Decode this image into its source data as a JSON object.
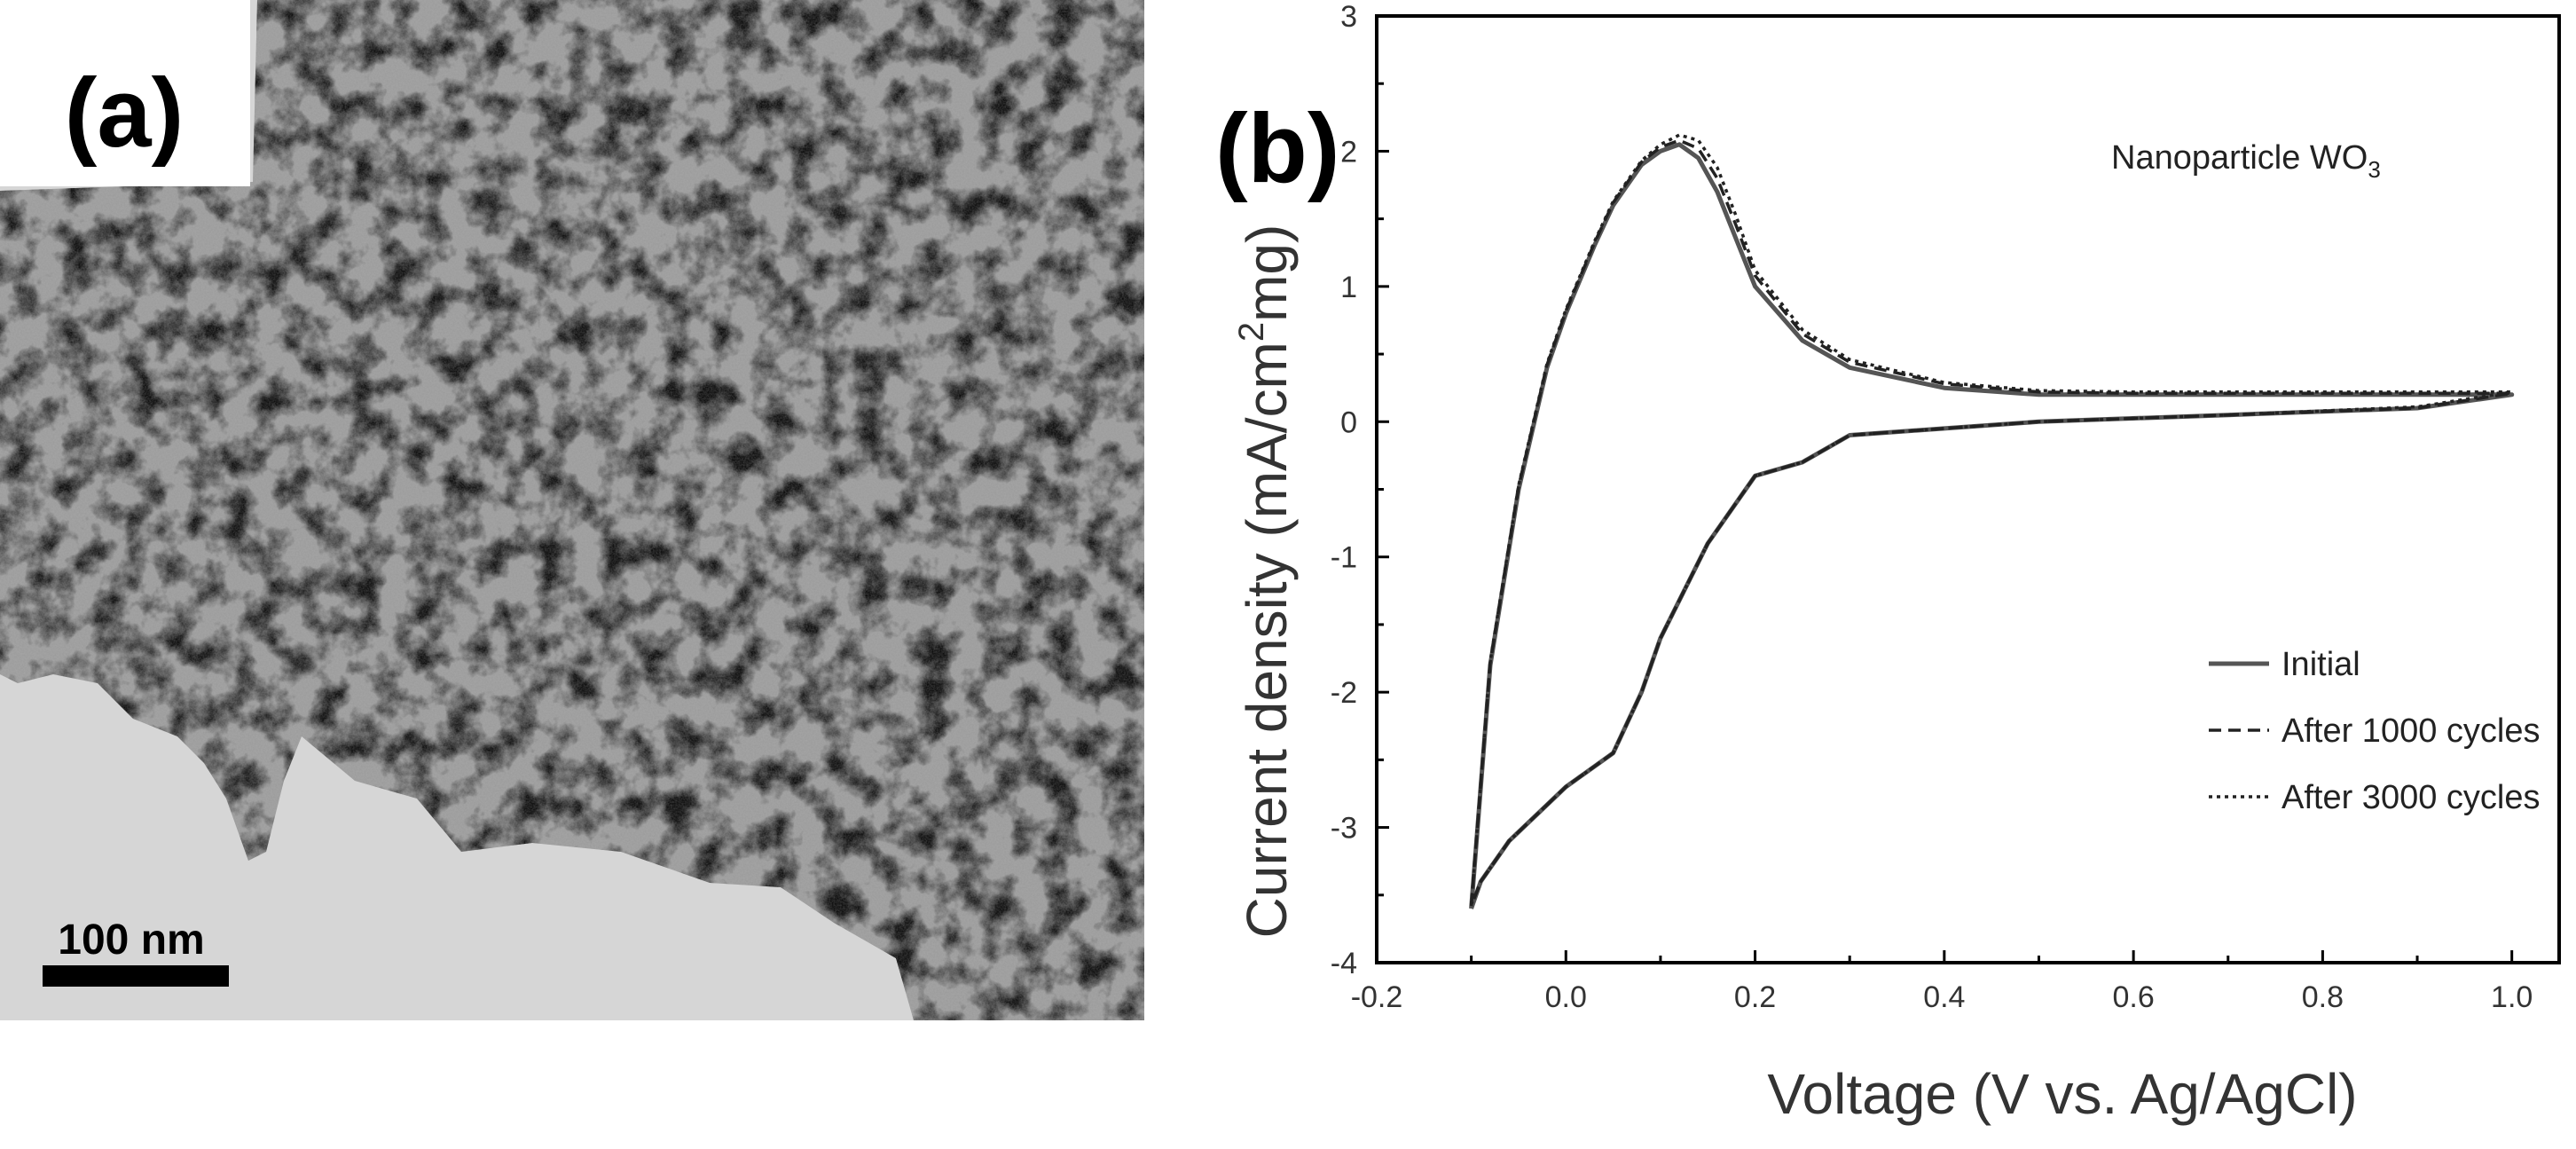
{
  "panel_a": {
    "label": "(a)",
    "scale_bar_label": "100 nm"
  },
  "chart_data": {
    "type": "line",
    "panel_label": "(b)",
    "title": "",
    "annotation": "Nanoparticle WO",
    "annotation_subscript": "3",
    "xlabel": "Voltage (V vs. Ag/AgCl)",
    "ylabel": "Current density (mA/cm",
    "ylabel_sup": "2",
    "ylabel_tail": "mg)",
    "xlim": [
      -0.2,
      1.05
    ],
    "ylim": [
      -4,
      3
    ],
    "xticks": [
      -0.2,
      0.0,
      0.2,
      0.4,
      0.6,
      0.8,
      1.0
    ],
    "xtick_labels": [
      "-0.2",
      "0.0",
      "0.2",
      "0.4",
      "0.6",
      "0.8",
      "1.0"
    ],
    "yticks": [
      -4,
      -3,
      -2,
      -1,
      0,
      1,
      2,
      3
    ],
    "ytick_labels": [
      "-4",
      "-3",
      "-2",
      "-1",
      "0",
      "1",
      "2",
      "3"
    ],
    "grid": false,
    "legend_position": "lower-right",
    "series": [
      {
        "name": "Initial",
        "style": "solid",
        "x": [
          -0.1,
          -0.08,
          -0.05,
          -0.02,
          0.0,
          0.03,
          0.05,
          0.08,
          0.1,
          0.12,
          0.14,
          0.16,
          0.18,
          0.2,
          0.25,
          0.3,
          0.4,
          0.5,
          0.6,
          0.8,
          1.0,
          0.9,
          0.7,
          0.5,
          0.4,
          0.3,
          0.25,
          0.2,
          0.15,
          0.1,
          0.08,
          0.05,
          0.02,
          0.0,
          -0.03,
          -0.06,
          -0.09,
          -0.1
        ],
        "y": [
          -3.6,
          -1.8,
          -0.5,
          0.4,
          0.8,
          1.3,
          1.6,
          1.9,
          2.0,
          2.05,
          1.95,
          1.7,
          1.35,
          1.0,
          0.6,
          0.4,
          0.25,
          0.2,
          0.2,
          0.2,
          0.2,
          0.1,
          0.05,
          0.0,
          -0.05,
          -0.1,
          -0.3,
          -0.4,
          -0.9,
          -1.6,
          -2.0,
          -2.45,
          -2.6,
          -2.7,
          -2.9,
          -3.1,
          -3.4,
          -3.6
        ]
      },
      {
        "name": "After 1000 cycles",
        "style": "dashed",
        "x": [
          -0.1,
          -0.08,
          -0.05,
          -0.02,
          0.0,
          0.03,
          0.05,
          0.08,
          0.1,
          0.12,
          0.14,
          0.16,
          0.18,
          0.2,
          0.25,
          0.3,
          0.4,
          0.5,
          0.6,
          0.8,
          1.0,
          0.9,
          0.7,
          0.5,
          0.4,
          0.3,
          0.25,
          0.2,
          0.15,
          0.1,
          0.08,
          0.05,
          0.02,
          0.0,
          -0.03,
          -0.06,
          -0.09,
          -0.1
        ],
        "y": [
          -3.58,
          -1.78,
          -0.48,
          0.42,
          0.82,
          1.32,
          1.62,
          1.92,
          2.03,
          2.08,
          2.02,
          1.8,
          1.45,
          1.08,
          0.65,
          0.44,
          0.28,
          0.22,
          0.21,
          0.21,
          0.21,
          0.1,
          0.05,
          0.0,
          -0.05,
          -0.1,
          -0.3,
          -0.4,
          -0.9,
          -1.6,
          -2.0,
          -2.45,
          -2.6,
          -2.7,
          -2.9,
          -3.1,
          -3.4,
          -3.58
        ]
      },
      {
        "name": "After 3000 cycles",
        "style": "dotted",
        "x": [
          -0.1,
          -0.08,
          -0.05,
          -0.02,
          0.0,
          0.03,
          0.05,
          0.08,
          0.1,
          0.12,
          0.14,
          0.16,
          0.18,
          0.2,
          0.25,
          0.3,
          0.4,
          0.5,
          0.6,
          0.8,
          1.0,
          0.9,
          0.7,
          0.5,
          0.4,
          0.3,
          0.25,
          0.2,
          0.15,
          0.1,
          0.08,
          0.05,
          0.02,
          0.0,
          -0.03,
          -0.06,
          -0.09,
          -0.1
        ],
        "y": [
          -3.57,
          -1.77,
          -0.47,
          0.43,
          0.83,
          1.33,
          1.63,
          1.93,
          2.05,
          2.12,
          2.08,
          1.88,
          1.52,
          1.12,
          0.68,
          0.46,
          0.29,
          0.23,
          0.22,
          0.22,
          0.22,
          0.11,
          0.05,
          0.0,
          -0.05,
          -0.1,
          -0.3,
          -0.4,
          -0.9,
          -1.6,
          -2.0,
          -2.45,
          -2.6,
          -2.7,
          -2.9,
          -3.1,
          -3.4,
          -3.57
        ]
      }
    ]
  }
}
